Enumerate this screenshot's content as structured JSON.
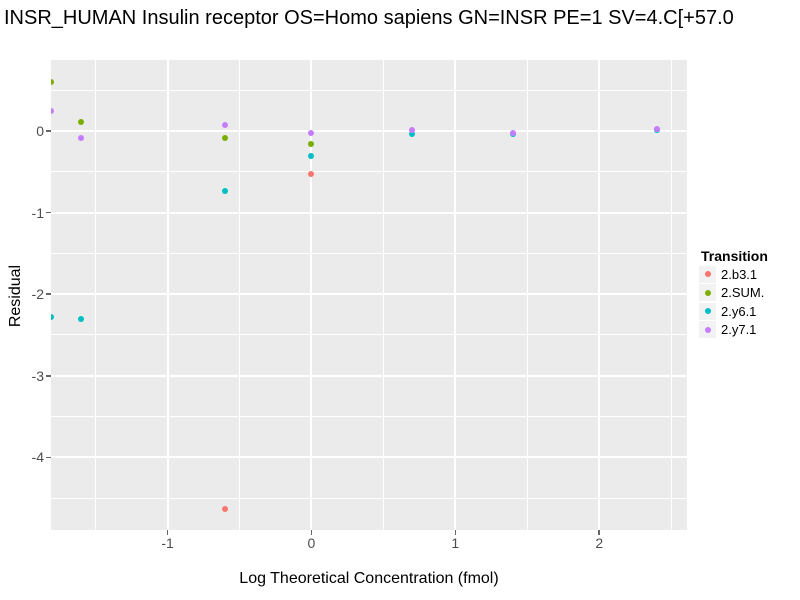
{
  "title": "INSR_HUMAN Insulin receptor OS=Homo sapiens GN=INSR PE=1 SV=4.C[+57.0",
  "chart_data": {
    "type": "scatter",
    "title": "INSR_HUMAN Insulin receptor OS=Homo sapiens GN=INSR PE=1 SV=4.C[+57.0",
    "xlabel": "Log Theoretical Concentration (fmol)",
    "ylabel": "Residual",
    "xlim": [
      -1.81,
      2.61
    ],
    "ylim": [
      -4.89,
      0.87
    ],
    "x_ticks": [
      -1,
      0,
      1,
      2
    ],
    "y_ticks": [
      0,
      -1,
      -2,
      -3,
      -4
    ],
    "x_minor_ticks": [
      -1.5,
      -0.5,
      0.5,
      1.5,
      2.5
    ],
    "y_minor_ticks": [
      0.5,
      -0.5,
      -1.5,
      -2.5,
      -3.5,
      -4.5
    ],
    "grid": "on",
    "legend_title": "Transition",
    "legend_position": "right",
    "panel_bg_color": "#EBEBEB",
    "grid_color": "#FFFFFF",
    "tick_label_color": "#4D4D4D",
    "legend_key_bg_color": "#F2F2F2",
    "series": [
      {
        "name": "2.b3.1",
        "color": "#F8766D",
        "points": [
          [
            -0.6,
            -4.63
          ],
          [
            0.0,
            -0.53
          ]
        ]
      },
      {
        "name": "2.SUM.",
        "color": "#7CAE00",
        "points": [
          [
            -1.81,
            0.6
          ],
          [
            -1.6,
            0.11
          ],
          [
            -0.6,
            -0.09
          ],
          [
            0.0,
            -0.16
          ]
        ]
      },
      {
        "name": "2.y6.1",
        "color": "#00BFC4",
        "points": [
          [
            -1.81,
            -2.28
          ],
          [
            -1.6,
            -2.3
          ],
          [
            -0.6,
            -0.73
          ],
          [
            0.0,
            -0.31
          ],
          [
            0.7,
            -0.04
          ],
          [
            1.4,
            -0.04
          ],
          [
            2.4,
            0.01
          ]
        ]
      },
      {
        "name": "2.y7.1",
        "color": "#C77CFF",
        "points": [
          [
            -1.81,
            0.24
          ],
          [
            -1.6,
            -0.08
          ],
          [
            -0.6,
            0.07
          ],
          [
            0.0,
            -0.02
          ],
          [
            0.7,
            0.01
          ],
          [
            1.4,
            -0.02
          ],
          [
            2.4,
            0.02
          ]
        ]
      }
    ]
  }
}
